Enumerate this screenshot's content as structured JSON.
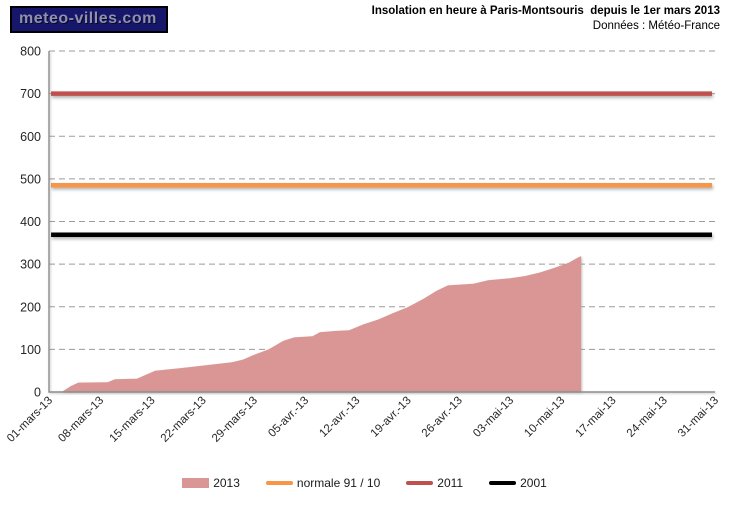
{
  "logo": {
    "text": "meteo-villes.com",
    "bg_color": "#16166a",
    "text_color": "#8f8fae"
  },
  "chart_data": {
    "type": "area",
    "title": "Insolation en heure à Paris-Montsouris  depuis le 1er mars 2013",
    "subtitle": "Données : Météo-France",
    "xlabel": "",
    "ylabel": "",
    "ylim": [
      0,
      800
    ],
    "y_tick_interval": 100,
    "grid": "horizontal dashed gray",
    "x_domain_days": [
      0,
      91
    ],
    "x_tick_interval_days": 7,
    "x_tick_labels": [
      "01-mars-13",
      "08-mars-13",
      "15-mars-13",
      "22-mars-13",
      "29-mars-13",
      "05-avr.-13",
      "12-avr.-13",
      "19-avr.-13",
      "26-avr.-13",
      "03-mai-13",
      "10-mai-13",
      "17-mai-13",
      "24-mai-13",
      "31-mai-13"
    ],
    "series": [
      {
        "key": "2013",
        "name": "2013",
        "type": "area",
        "color": "#d99694",
        "note": "cumulative sunshine hours since 1 mars 2013; points are [days_since_mar1, hours]; data stops ~12 mai 2013",
        "points": [
          [
            0,
            0
          ],
          [
            1.8,
            1
          ],
          [
            3,
            14
          ],
          [
            4,
            22
          ],
          [
            8,
            23
          ],
          [
            9,
            30
          ],
          [
            12,
            31
          ],
          [
            14.5,
            50
          ],
          [
            18,
            56
          ],
          [
            21,
            62
          ],
          [
            25,
            70
          ],
          [
            26.5,
            76
          ],
          [
            28,
            87
          ],
          [
            30,
            100
          ],
          [
            32,
            120
          ],
          [
            33.5,
            128
          ],
          [
            36,
            131
          ],
          [
            37,
            140
          ],
          [
            39,
            143
          ],
          [
            41,
            145
          ],
          [
            43,
            159
          ],
          [
            45,
            170
          ],
          [
            47,
            185
          ],
          [
            49,
            199
          ],
          [
            51,
            217
          ],
          [
            53,
            238
          ],
          [
            54.5,
            250
          ],
          [
            58,
            254
          ],
          [
            60,
            262
          ],
          [
            63,
            267
          ],
          [
            65,
            272
          ],
          [
            67,
            280
          ],
          [
            69,
            291
          ],
          [
            71,
            303
          ],
          [
            72,
            313
          ],
          [
            72.7,
            319
          ]
        ],
        "weekly_values_at_ticks": [
          0,
          22,
          50,
          63,
          88,
          130,
          146,
          198,
          253,
          267,
          300,
          null,
          null,
          null
        ]
      },
      {
        "key": "normale",
        "name": "normale 91 / 10",
        "type": "hline",
        "color": "#f79646",
        "value": 485
      },
      {
        "key": "2011",
        "name": "2011",
        "type": "hline",
        "color": "#c0504d",
        "value": 700
      },
      {
        "key": "2001",
        "name": "2001",
        "type": "hline",
        "color": "#000000",
        "value": 369
      }
    ],
    "legend": {
      "position": "bottom center",
      "entries": [
        {
          "label": "2013",
          "swatch": "rect",
          "color": "#d99694"
        },
        {
          "label": "normale 91 / 10",
          "swatch": "line",
          "color": "#f79646"
        },
        {
          "label": "2011",
          "swatch": "line",
          "color": "#c0504d"
        },
        {
          "label": "2001",
          "swatch": "line",
          "color": "#000000"
        }
      ]
    },
    "colors": {
      "gridline": "#9b9b9b",
      "axis": "#8e8e8e",
      "tick_text": "#262626"
    }
  }
}
